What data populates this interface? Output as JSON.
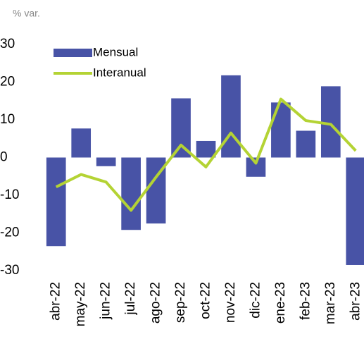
{
  "chart_data": {
    "type": "bar_line",
    "y_label": "% var.",
    "categories": [
      "abr-22",
      "may-22",
      "jun-22",
      "jul-22",
      "ago-22",
      "sep-22",
      "oct-22",
      "nov-22",
      "dic-22",
      "ene-23",
      "feb-23",
      "mar-23",
      "abr-23"
    ],
    "series": [
      {
        "name": "Mensual",
        "type": "bar",
        "color": "#4853a6",
        "values": [
          -23.5,
          7.7,
          -2.3,
          -19.2,
          -17.5,
          15.7,
          4.4,
          21.8,
          -5.1,
          14.6,
          7.1,
          18.9,
          -28.5
        ]
      },
      {
        "name": "Interanual",
        "type": "line",
        "color": "#b4d334",
        "values": [
          -7.8,
          -4.5,
          -6.5,
          -14.0,
          -5.2,
          3.3,
          -2.5,
          6.5,
          -1.5,
          15.5,
          9.8,
          8.8,
          1.8
        ]
      }
    ],
    "ylim": [
      -30,
      30
    ],
    "yticks": [
      -30,
      -20,
      -10,
      0,
      10,
      20,
      30
    ],
    "grid": false,
    "legend": "top-left"
  }
}
